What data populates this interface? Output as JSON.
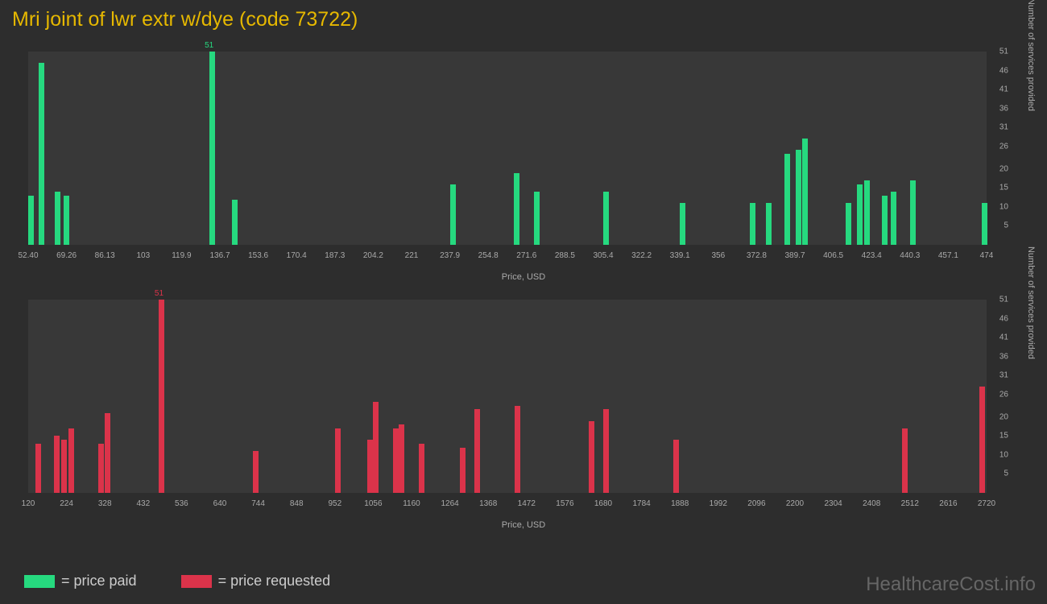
{
  "title": "Mri joint of lwr extr w/dye (code 73722)",
  "chart1": {
    "type": "bar",
    "bar_color": "#26d97f",
    "background_color": "#383838",
    "xlabel": "Price, USD",
    "ylabel": "Number of services provided",
    "xmin": 52.4,
    "xmax": 474,
    "ymax": 51,
    "x_ticks": [
      "52.40",
      "69.26",
      "86.13",
      "103",
      "119.9",
      "136.7",
      "153.6",
      "170.4",
      "187.3",
      "204.2",
      "221",
      "237.9",
      "254.8",
      "271.6",
      "288.5",
      "305.4",
      "322.2",
      "339.1",
      "356",
      "372.8",
      "389.7",
      "406.5",
      "423.4",
      "440.3",
      "457.1",
      "474"
    ],
    "y_ticks": [
      5,
      10,
      15,
      20,
      26,
      31,
      36,
      41,
      46,
      51
    ],
    "bars": [
      {
        "x": 52.4,
        "y": 13
      },
      {
        "x": 57,
        "y": 48
      },
      {
        "x": 64,
        "y": 14
      },
      {
        "x": 68,
        "y": 13
      },
      {
        "x": 132,
        "y": 51,
        "label": "51"
      },
      {
        "x": 142,
        "y": 12
      },
      {
        "x": 237.9,
        "y": 16
      },
      {
        "x": 266,
        "y": 19
      },
      {
        "x": 275,
        "y": 14
      },
      {
        "x": 305.4,
        "y": 14
      },
      {
        "x": 339.1,
        "y": 11
      },
      {
        "x": 370,
        "y": 11
      },
      {
        "x": 377,
        "y": 11
      },
      {
        "x": 385,
        "y": 24
      },
      {
        "x": 390,
        "y": 25
      },
      {
        "x": 393,
        "y": 28
      },
      {
        "x": 412,
        "y": 11
      },
      {
        "x": 417,
        "y": 16
      },
      {
        "x": 420,
        "y": 17
      },
      {
        "x": 428,
        "y": 13
      },
      {
        "x": 432,
        "y": 14
      },
      {
        "x": 440.3,
        "y": 17
      },
      {
        "x": 472,
        "y": 11
      }
    ]
  },
  "chart2": {
    "type": "bar",
    "bar_color": "#db334a",
    "background_color": "#383838",
    "xlabel": "Price, USD",
    "ylabel": "Number of services provided",
    "xmin": 120,
    "xmax": 2720,
    "ymax": 51,
    "x_ticks": [
      "120",
      "224",
      "328",
      "432",
      "536",
      "640",
      "744",
      "848",
      "952",
      "1056",
      "1160",
      "1264",
      "1368",
      "1472",
      "1576",
      "1680",
      "1784",
      "1888",
      "1992",
      "2096",
      "2200",
      "2304",
      "2408",
      "2512",
      "2616",
      "2720"
    ],
    "y_ticks": [
      5,
      10,
      15,
      20,
      26,
      31,
      36,
      41,
      46,
      51
    ],
    "bars": [
      {
        "x": 140,
        "y": 13
      },
      {
        "x": 190,
        "y": 15
      },
      {
        "x": 210,
        "y": 14
      },
      {
        "x": 230,
        "y": 17
      },
      {
        "x": 310,
        "y": 13
      },
      {
        "x": 328,
        "y": 21
      },
      {
        "x": 475,
        "y": 51,
        "label": "51"
      },
      {
        "x": 730,
        "y": 11
      },
      {
        "x": 952,
        "y": 17
      },
      {
        "x": 1040,
        "y": 14
      },
      {
        "x": 1056,
        "y": 24
      },
      {
        "x": 1110,
        "y": 17
      },
      {
        "x": 1125,
        "y": 18
      },
      {
        "x": 1180,
        "y": 13
      },
      {
        "x": 1290,
        "y": 12
      },
      {
        "x": 1330,
        "y": 22
      },
      {
        "x": 1440,
        "y": 23
      },
      {
        "x": 1640,
        "y": 19
      },
      {
        "x": 1680,
        "y": 22
      },
      {
        "x": 1870,
        "y": 14
      },
      {
        "x": 2490,
        "y": 17
      },
      {
        "x": 2700,
        "y": 28
      }
    ]
  },
  "legend": {
    "series1": {
      "color": "#26d97f",
      "label": "= price paid"
    },
    "series2": {
      "color": "#db334a",
      "label": "= price requested"
    }
  },
  "watermark": "HealthcareCost.info"
}
